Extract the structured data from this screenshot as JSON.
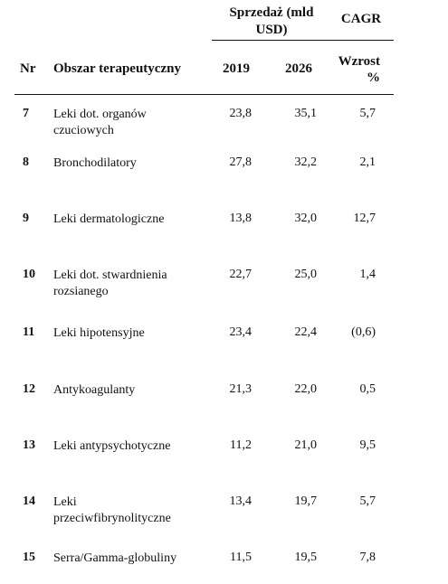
{
  "header": {
    "sales_label": "Sprzedaż (mld USD)",
    "cagr_label": "CAGR",
    "nr_label": "Nr",
    "area_label": "Obszar terapeutyczny",
    "year1_label": "2019",
    "year2_label": "2026",
    "growth_label": "Wzrost %"
  },
  "rows": [
    {
      "nr": "7",
      "area": "Leki dot. organów czuciowych",
      "v2019": "23,8",
      "v2026": "35,1",
      "cagr": "5,7"
    },
    {
      "nr": "8",
      "area": "Bronchodilatory",
      "v2019": "27,8",
      "v2026": "32,2",
      "cagr": "2,1"
    },
    {
      "nr": "9",
      "area": "Leki dermatologiczne",
      "v2019": "13,8",
      "v2026": "32,0",
      "cagr": "12,7"
    },
    {
      "nr": "10",
      "area": "Leki dot. stwardnienia rozsianego",
      "v2019": "22,7",
      "v2026": "25,0",
      "cagr": "1,4"
    },
    {
      "nr": "11",
      "area": "Leki hipotensyjne",
      "v2019": "23,4",
      "v2026": "22,4",
      "cagr": "(0,6)"
    },
    {
      "nr": "12",
      "area": "Antykoagulanty",
      "v2019": "21,3",
      "v2026": "22,0",
      "cagr": "0,5"
    },
    {
      "nr": "13",
      "area": "Leki antypsychotyczne",
      "v2019": "11,2",
      "v2026": "21,0",
      "cagr": "9,5"
    },
    {
      "nr": "14",
      "area": "Leki przeciwfibrynolityczne",
      "v2019": "13,4",
      "v2026": "19,7",
      "cagr": "5,7"
    },
    {
      "nr": "15",
      "area": "Serra/Gamma-globuliny",
      "v2019": "11,5",
      "v2026": "19,5",
      "cagr": "7,8"
    }
  ]
}
